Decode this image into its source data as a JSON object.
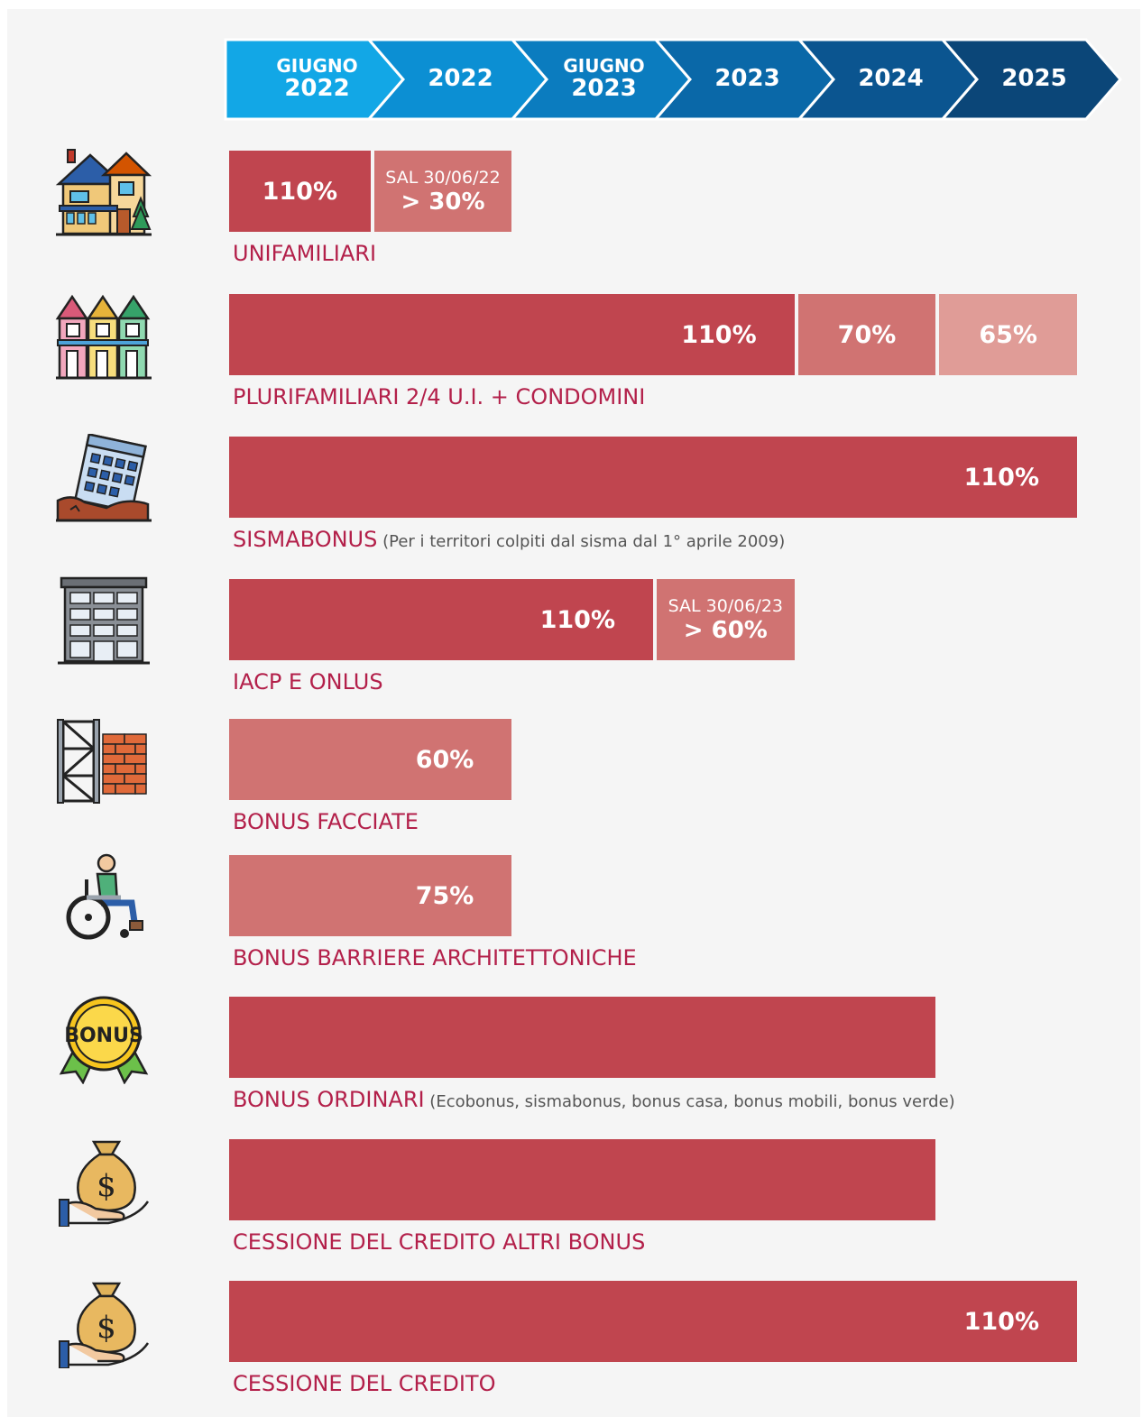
{
  "timeline": [
    {
      "small": "GIUGNO",
      "big": "2022"
    },
    {
      "small": "",
      "big": "2022"
    },
    {
      "small": "GIUGNO",
      "big": "2023"
    },
    {
      "small": "",
      "big": "2023"
    },
    {
      "small": "",
      "big": "2024"
    },
    {
      "small": "",
      "big": "2025"
    }
  ],
  "colors": {
    "dark": "#c0454f",
    "mid": "#d07372",
    "light": "#e09c97",
    "label": "#b3204a",
    "chevrons": [
      "#12a7e6",
      "#0c8fd3",
      "#0b7cbf",
      "#0a68a8",
      "#0b5590",
      "#0b4678"
    ]
  },
  "chart_data": {
    "type": "bar",
    "x_periods": [
      "GIUGNO 2022",
      "2022",
      "GIUGNO 2023",
      "2023",
      "2024",
      "2025"
    ],
    "rows": [
      {
        "label": "UNIFAMILIARI",
        "sub": "",
        "icon": "house-icon",
        "segments": [
          {
            "start": 0,
            "end": 1,
            "text": "110%",
            "shade": "dark"
          },
          {
            "start": 1,
            "end": 2,
            "note": "SAL 30/06/22",
            "text": "> 30%",
            "shade": "mid"
          }
        ]
      },
      {
        "label": "PLURIFAMILIARI 2/4 U.I. + CONDOMINI",
        "sub": "",
        "icon": "rowhouses-icon",
        "segments": [
          {
            "start": 0,
            "end": 4,
            "text": "110%",
            "shade": "dark"
          },
          {
            "start": 4,
            "end": 5,
            "text": "70%",
            "shade": "mid"
          },
          {
            "start": 5,
            "end": 6,
            "text": "65%",
            "shade": "light"
          }
        ]
      },
      {
        "label": "SISMABONUS",
        "sub": "(Per i territori colpiti dal sisma dal 1° aprile 2009)",
        "icon": "collapsed-building-icon",
        "segments": [
          {
            "start": 0,
            "end": 6,
            "text": "110%",
            "shade": "dark"
          }
        ]
      },
      {
        "label": "IACP E ONLUS",
        "sub": "",
        "icon": "apartment-building-icon",
        "segments": [
          {
            "start": 0,
            "end": 3,
            "text": "110%",
            "shade": "dark"
          },
          {
            "start": 3,
            "end": 4,
            "note": "SAL 30/06/23",
            "text": "> 60%",
            "shade": "mid"
          }
        ]
      },
      {
        "label": "BONUS FACCIATE",
        "sub": "",
        "icon": "scaffolding-icon",
        "segments": [
          {
            "start": 0,
            "end": 2,
            "text": "60%",
            "shade": "mid"
          }
        ]
      },
      {
        "label": "BONUS BARRIERE ARCHITETTONICHE",
        "sub": "",
        "icon": "wheelchair-icon",
        "segments": [
          {
            "start": 0,
            "end": 2,
            "text": "75%",
            "shade": "mid"
          }
        ]
      },
      {
        "label": "BONUS ORDINARI",
        "sub": "(Ecobonus, sismabonus, bonus casa, bonus mobili, bonus verde)",
        "icon": "bonus-badge-icon",
        "segments": [
          {
            "start": 0,
            "end": 5,
            "text": "",
            "shade": "dark"
          }
        ]
      },
      {
        "label": "CESSIONE DEL CREDITO ALTRI BONUS",
        "sub": "",
        "icon": "money-bag-hand-icon",
        "segments": [
          {
            "start": 0,
            "end": 5,
            "text": "",
            "shade": "dark"
          }
        ]
      },
      {
        "label": "CESSIONE DEL CREDITO",
        "sub": "",
        "icon": "money-bag-hand-icon",
        "segments": [
          {
            "start": 0,
            "end": 6,
            "text": "110%",
            "shade": "dark"
          }
        ]
      }
    ]
  }
}
